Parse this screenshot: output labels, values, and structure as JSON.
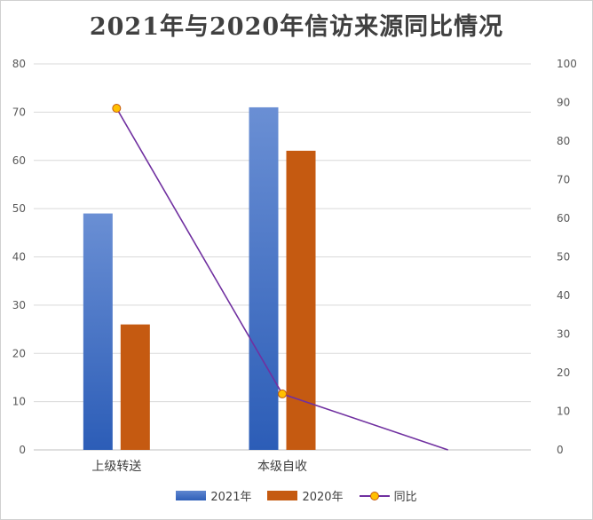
{
  "chart_data": {
    "type": "bar",
    "title": "2021年与2020年信访来源同比情况",
    "categories": [
      "上级转送",
      "本级自收",
      ""
    ],
    "series": [
      {
        "name": "2021年",
        "type": "bar",
        "axis": "left",
        "color": "#4472c4",
        "values": [
          49,
          71,
          null
        ]
      },
      {
        "name": "2020年",
        "type": "bar",
        "axis": "left",
        "color": "#c55a11",
        "values": [
          26,
          62,
          null
        ]
      },
      {
        "name": "同比",
        "type": "line",
        "axis": "right",
        "color": "#7030a0",
        "marker_color": "#ffc000",
        "values": [
          88.5,
          14.5,
          0
        ]
      }
    ],
    "y_left": {
      "min": 0,
      "max": 80,
      "step": 10,
      "ticks": [
        "0",
        "10",
        "20",
        "30",
        "40",
        "50",
        "60",
        "70",
        "80"
      ]
    },
    "y_right": {
      "min": 0,
      "max": 100,
      "step": 10,
      "ticks": [
        "0",
        "10",
        "20",
        "30",
        "40",
        "50",
        "60",
        "70",
        "80",
        "90",
        "100"
      ]
    },
    "grid": true,
    "legend": "bottom"
  }
}
